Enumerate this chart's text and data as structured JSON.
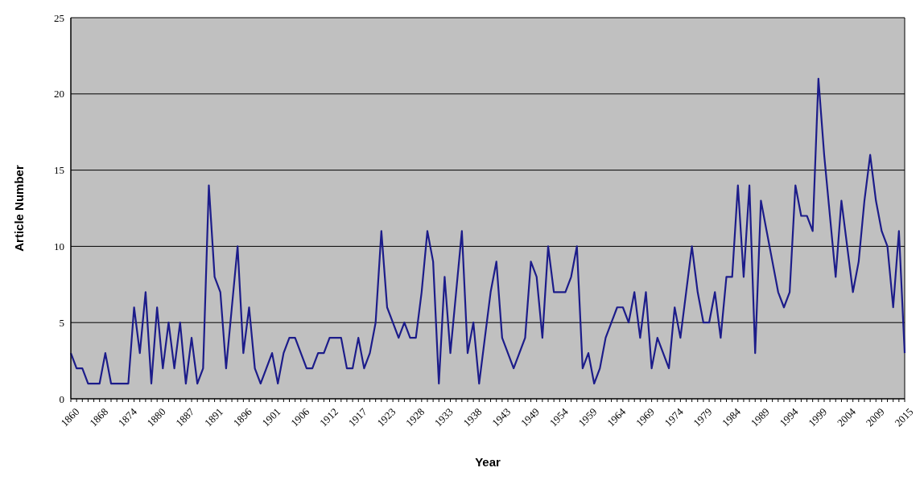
{
  "chart_data": {
    "type": "line",
    "xlabel": "Year",
    "ylabel": "Article Number",
    "categories": [
      "1860",
      null,
      null,
      null,
      null,
      "1868",
      null,
      null,
      null,
      null,
      "1874",
      null,
      null,
      null,
      null,
      "1880",
      null,
      null,
      null,
      null,
      "1887",
      null,
      null,
      null,
      null,
      "1891",
      null,
      null,
      null,
      null,
      "1896",
      null,
      null,
      null,
      null,
      "1901",
      null,
      null,
      null,
      null,
      "1906",
      null,
      null,
      null,
      null,
      "1912",
      null,
      null,
      null,
      null,
      "1917",
      null,
      null,
      null,
      null,
      "1923",
      null,
      null,
      null,
      null,
      "1928",
      null,
      null,
      null,
      null,
      "1933",
      null,
      null,
      null,
      null,
      "1938",
      null,
      null,
      null,
      null,
      "1943",
      null,
      null,
      null,
      null,
      "1949",
      null,
      null,
      null,
      null,
      "1954",
      null,
      null,
      null,
      null,
      "1959",
      null,
      null,
      null,
      null,
      "1964",
      null,
      null,
      null,
      null,
      "1969",
      null,
      null,
      null,
      null,
      "1974",
      null,
      null,
      null,
      null,
      "1979",
      null,
      null,
      null,
      null,
      "1984",
      null,
      null,
      null,
      null,
      "1989",
      null,
      null,
      null,
      null,
      "1994",
      null,
      null,
      null,
      null,
      "1999",
      null,
      null,
      null,
      null,
      "2004",
      null,
      null,
      null,
      null,
      "2009",
      null,
      null,
      null,
      null,
      "2015"
    ],
    "series": [
      {
        "color": "#1c1c8a",
        "values": [
          3,
          2,
          2,
          1,
          1,
          1,
          3,
          1,
          1,
          1,
          1,
          6,
          3,
          7,
          1,
          6,
          2,
          5,
          2,
          5,
          1,
          4,
          1,
          2,
          14,
          8,
          7,
          2,
          6,
          10,
          3,
          6,
          2,
          1,
          2,
          3,
          1,
          3,
          4,
          4,
          3,
          2,
          2,
          3,
          3,
          4,
          4,
          4,
          2,
          2,
          4,
          2,
          3,
          5,
          11,
          6,
          5,
          4,
          5,
          4,
          4,
          7,
          11,
          9,
          1,
          8,
          3,
          7,
          11,
          3,
          5,
          1,
          4,
          7,
          9,
          4,
          3,
          2,
          3,
          4,
          9,
          8,
          4,
          10,
          7,
          7,
          7,
          8,
          10,
          2,
          3,
          1,
          2,
          4,
          5,
          6,
          6,
          5,
          7,
          4,
          7,
          2,
          4,
          3,
          2,
          6,
          4,
          7,
          10,
          7,
          5,
          5,
          7,
          4,
          8,
          8,
          14,
          8,
          14,
          3,
          13,
          11,
          9,
          7,
          6,
          7,
          14,
          12,
          12,
          11,
          21,
          16,
          12,
          8,
          13,
          10,
          7,
          9,
          13,
          16,
          13,
          11,
          10,
          6,
          11,
          3
        ]
      }
    ],
    "ylim": [
      0,
      25
    ],
    "yticks": [
      0,
      5,
      10,
      15,
      20,
      25
    ],
    "grid": "y",
    "marker": "none",
    "line_style": "solid"
  }
}
